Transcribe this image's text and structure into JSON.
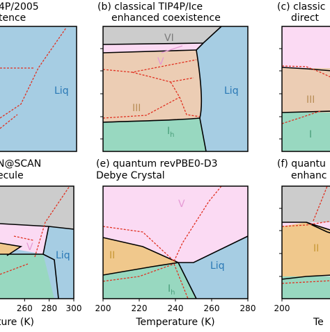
{
  "chart_data": [
    {
      "panel": "(a)",
      "type": "area",
      "title_lines": [
        "4P/2005",
        "tence"
      ],
      "visible_phase_labels": [
        "Liq"
      ],
      "xlabel": "",
      "xlim_estimate": [
        200,
        300
      ]
    },
    {
      "panel": "(b)",
      "type": "area",
      "title_lines": [
        "(b) classical TIP4P/Ice",
        "enhanced coexistence"
      ],
      "phases": [
        "VI",
        "V",
        "III",
        "Ih",
        "Liq"
      ],
      "xlim_estimate": [
        200,
        300
      ]
    },
    {
      "panel": "(c)",
      "type": "area",
      "title_lines": [
        "(c) classic",
        "direct"
      ],
      "visible_phase_labels": [
        "III",
        "I"
      ],
      "xlim_estimate": [
        200,
        300
      ]
    },
    {
      "panel": "(d)",
      "type": "area",
      "title_lines": [
        "N@SCAN",
        "ecule"
      ],
      "visible_phase_labels": [
        "V",
        "Liq"
      ],
      "xlabel": "ture (K)",
      "x_ticks": [
        260,
        280,
        300
      ],
      "xlim": [
        240,
        300
      ]
    },
    {
      "panel": "(e)",
      "type": "area",
      "title_lines": [
        "(e) quantum revPBE0-D3",
        "Debye Crystal"
      ],
      "phases": [
        "V",
        "II",
        "Ih",
        "Liq"
      ],
      "xlabel": "Temperature (K)",
      "x_ticks": [
        200,
        220,
        240,
        260,
        280
      ],
      "xlim": [
        200,
        280
      ],
      "triple_point_approx": [
        252,
        "intersection of II, V, Ih, Liq"
      ]
    },
    {
      "panel": "(f)",
      "type": "area",
      "title_lines": [
        "(f) quantu",
        "enhanc"
      ],
      "visible_phase_labels": [
        "II"
      ],
      "xlabel": "Te",
      "x_ticks": [
        200
      ],
      "xlim_estimate": [
        200,
        280
      ]
    }
  ],
  "colors": {
    "liquid": "#a6cde3",
    "ice_Ih": "#98d8c0",
    "ice_III": "#eccdb4",
    "ice_II": "#f0c88c",
    "ice_V": "#fbdaf3",
    "ice_VI": "#cccccc",
    "phase_boundary": "#000000",
    "alt_boundary": "#e03020",
    "label_liq": "#2a78b5",
    "label_V": "#e59ad5",
    "label_III": "#b88e57",
    "label_II": "#c79835",
    "label_Ih": "#4a9e7a",
    "label_VI": "#7a7a7a"
  }
}
